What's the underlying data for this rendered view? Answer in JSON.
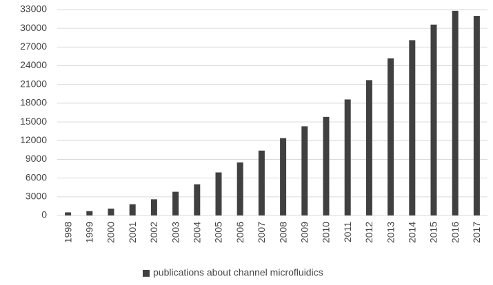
{
  "chart_data": {
    "type": "bar",
    "title": "",
    "xlabel": "",
    "ylabel": "",
    "categories": [
      "1998",
      "1999",
      "2000",
      "2001",
      "2002",
      "2003",
      "2004",
      "2005",
      "2006",
      "2007",
      "2008",
      "2009",
      "2010",
      "2011",
      "2012",
      "2013",
      "2014",
      "2015",
      "2016",
      "2017"
    ],
    "series": [
      {
        "name": "publications about channel microfluidics",
        "values": [
          500,
          700,
          1100,
          1800,
          2600,
          3800,
          5000,
          6900,
          8500,
          10400,
          12400,
          14300,
          15800,
          18600,
          21700,
          25200,
          28100,
          30600,
          32800,
          32000
        ]
      }
    ],
    "ylim": [
      0,
      33000
    ],
    "yticks": [
      0,
      3000,
      6000,
      9000,
      12000,
      15000,
      18000,
      21000,
      24000,
      27000,
      30000,
      33000
    ],
    "grid": true,
    "legend_position": "bottom",
    "colors": {
      "bar": "#404040",
      "grid": "#d9d9d9",
      "text": "#444444"
    }
  }
}
